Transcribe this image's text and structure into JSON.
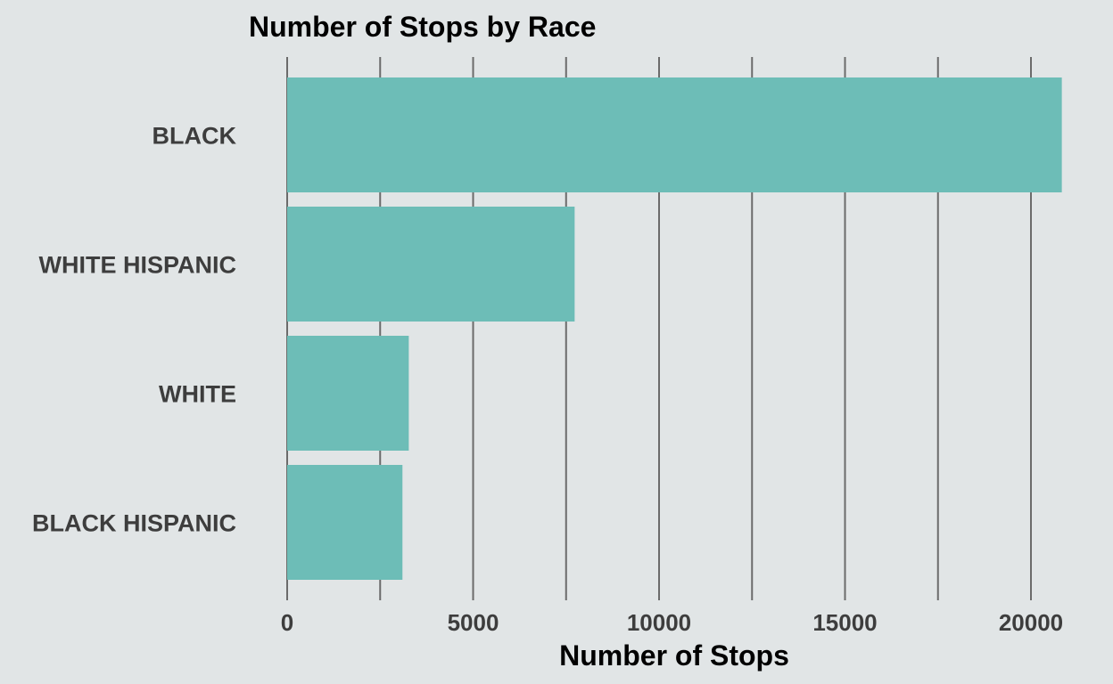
{
  "chart_data": {
    "type": "bar",
    "orientation": "horizontal",
    "title": "Number of Stops by Race",
    "xlabel": "Number of Stops",
    "ylabel": "",
    "categories": [
      "BLACK",
      "WHITE HISPANIC",
      "WHITE",
      "BLACK HISPANIC"
    ],
    "values": [
      20830,
      7730,
      3270,
      3100
    ],
    "xlim": [
      0,
      21000
    ],
    "xticks": [
      0,
      5000,
      10000,
      15000,
      20000
    ],
    "xtick_labels": [
      "0",
      "5000",
      "10000",
      "15000",
      "20000"
    ],
    "gridlines": [
      0,
      2500,
      5000,
      7500,
      10000,
      12500,
      15000,
      17500,
      20000
    ],
    "grid": true,
    "bar_color": "#6dbdb7",
    "grid_color": "#6b6b6b",
    "background_color": "#e1e5e6"
  }
}
